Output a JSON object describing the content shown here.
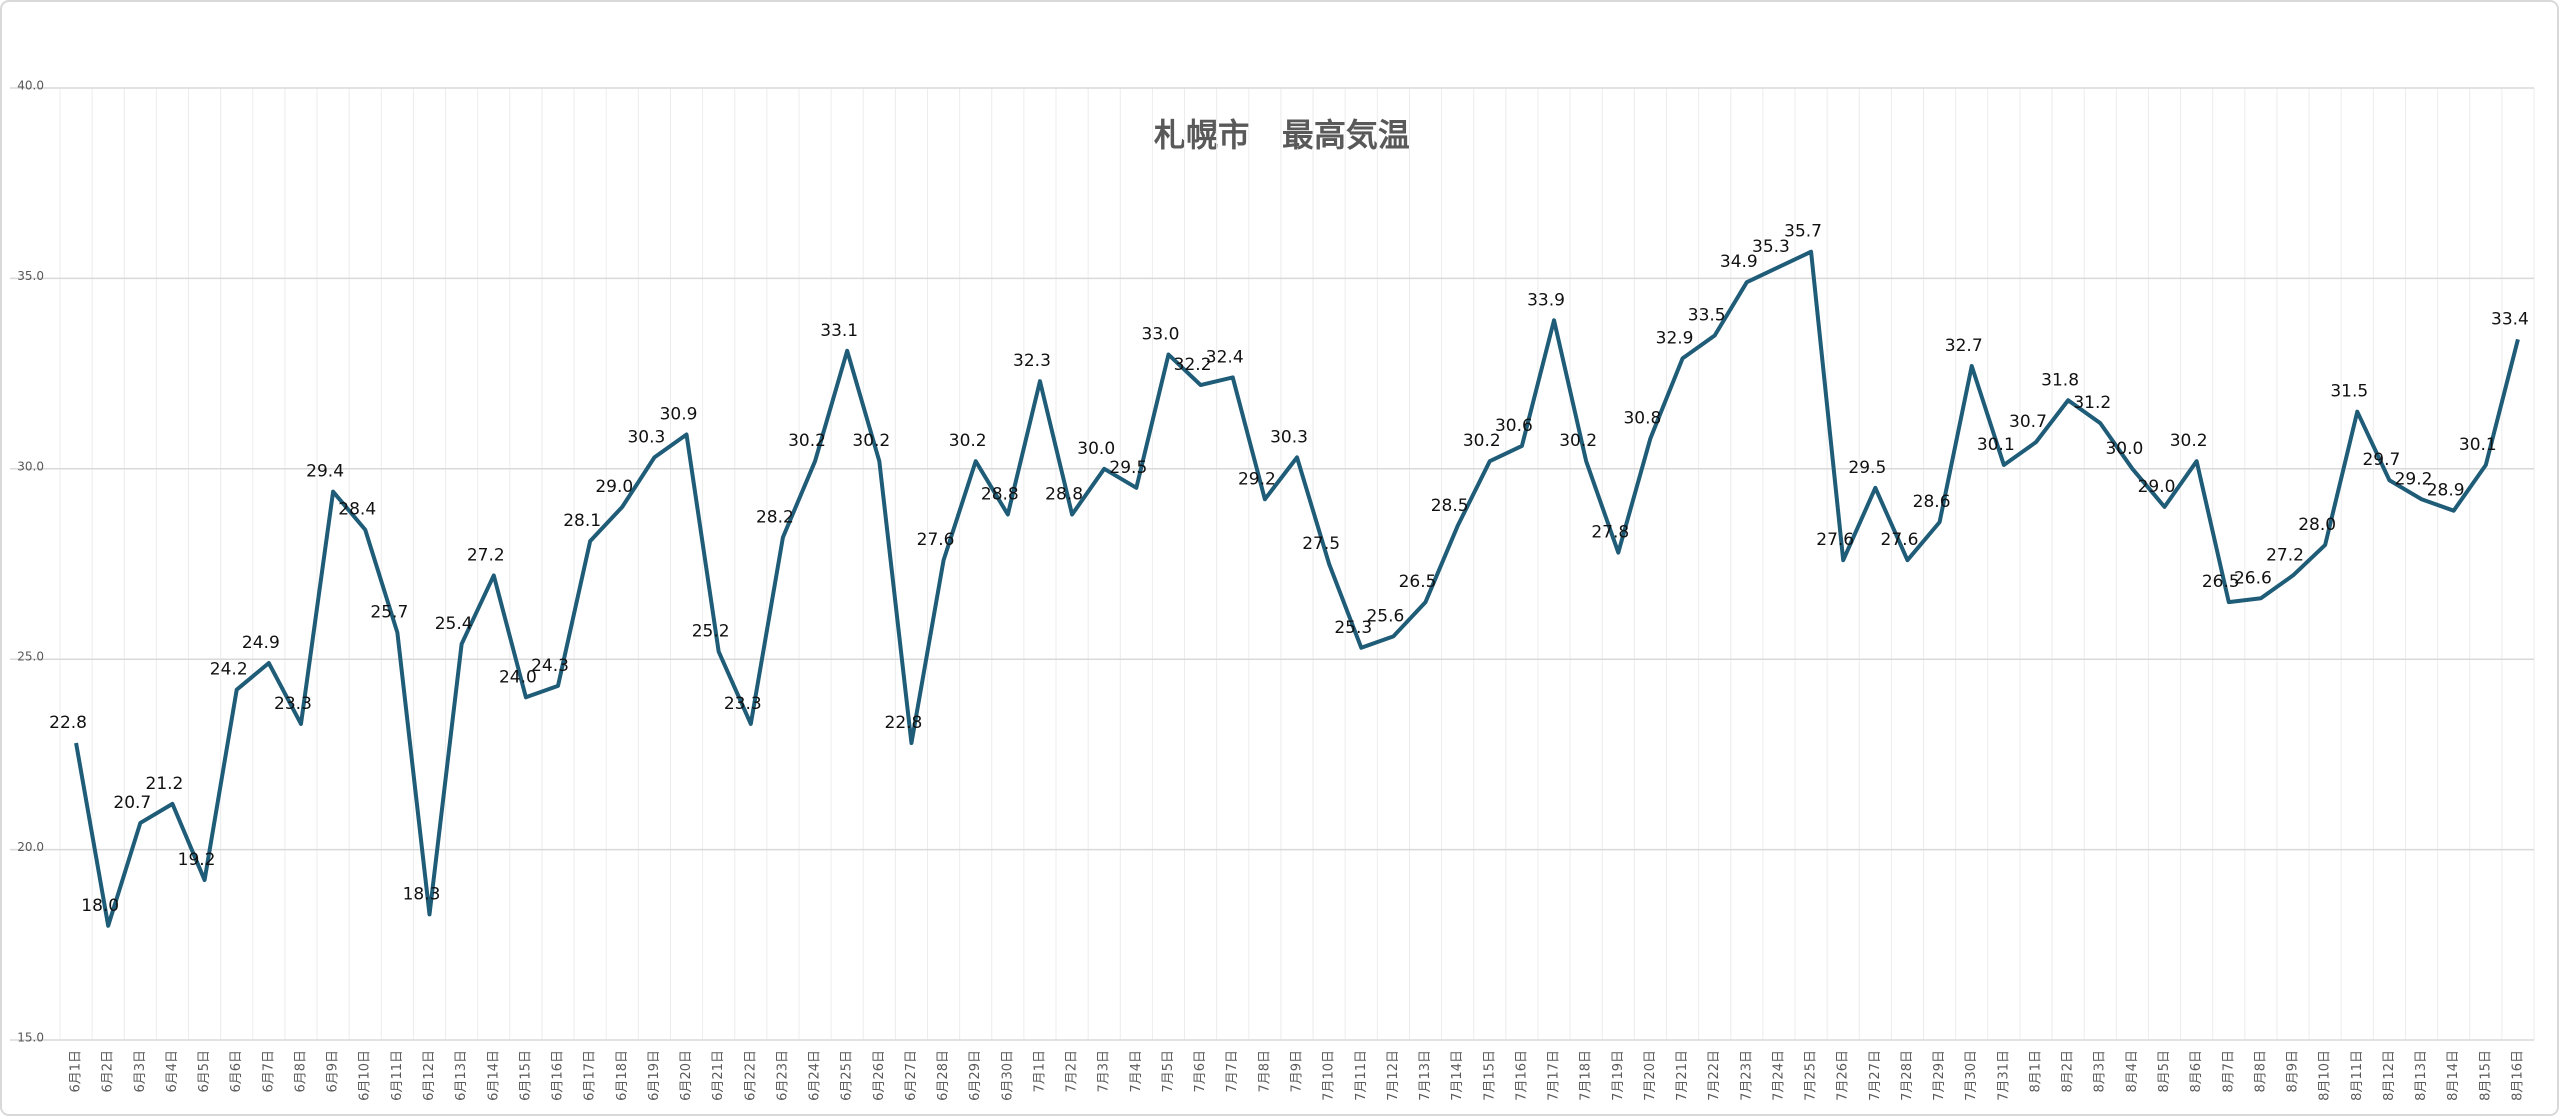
{
  "chart_data": {
    "type": "line",
    "title": "札幌市　最高気温",
    "categories": [
      "6月1日",
      "6月2日",
      "6月3日",
      "6月4日",
      "6月5日",
      "6月6日",
      "6月7日",
      "6月8日",
      "6月9日",
      "6月10日",
      "6月11日",
      "6月12日",
      "6月13日",
      "6月14日",
      "6月15日",
      "6月16日",
      "6月17日",
      "6月18日",
      "6月19日",
      "6月20日",
      "6月21日",
      "6月22日",
      "6月23日",
      "6月24日",
      "6月25日",
      "6月26日",
      "6月27日",
      "6月28日",
      "6月29日",
      "6月30日",
      "7月1日",
      "7月2日",
      "7月3日",
      "7月4日",
      "7月5日",
      "7月6日",
      "7月7日",
      "7月8日",
      "7月9日",
      "7月10日",
      "7月11日",
      "7月12日",
      "7月13日",
      "7月14日",
      "7月15日",
      "7月16日",
      "7月17日",
      "7月18日",
      "7月19日",
      "7月20日",
      "7月21日",
      "7月22日",
      "7月23日",
      "7月24日",
      "7月25日",
      "7月26日",
      "7月27日",
      "7月28日",
      "7月29日",
      "7月30日",
      "7月31日",
      "8月1日",
      "8月2日",
      "8月3日",
      "8月4日",
      "8月5日",
      "8月6日",
      "8月7日",
      "8月8日",
      "8月9日",
      "8月10日",
      "8月11日",
      "8月12日",
      "8月13日",
      "8月14日",
      "8月15日",
      "8月16日"
    ],
    "values": [
      22.8,
      18.0,
      20.7,
      21.2,
      19.2,
      24.2,
      24.9,
      23.3,
      29.4,
      28.4,
      25.7,
      18.3,
      25.4,
      27.2,
      24.0,
      24.3,
      28.1,
      29.0,
      30.3,
      30.9,
      25.2,
      23.3,
      28.2,
      30.2,
      33.1,
      30.2,
      22.8,
      27.6,
      30.2,
      28.8,
      32.3,
      28.8,
      30.0,
      29.5,
      33.0,
      32.2,
      32.4,
      29.2,
      30.3,
      27.5,
      25.3,
      25.6,
      26.5,
      28.5,
      30.2,
      30.6,
      33.9,
      30.2,
      27.8,
      30.8,
      32.9,
      33.5,
      34.9,
      35.3,
      35.7,
      27.6,
      29.5,
      27.6,
      28.6,
      32.7,
      30.1,
      30.7,
      31.8,
      31.2,
      30.0,
      29.0,
      30.2,
      26.5,
      26.6,
      27.2,
      28.0,
      31.5,
      29.7,
      29.2,
      28.9,
      30.1,
      33.4
    ],
    "value_labels": [
      "22.8",
      "18.0",
      "20.7",
      "21.2",
      "19.2",
      "24.2",
      "24.9",
      "23.3",
      "29.4",
      "28.4",
      "25.7",
      "18.3",
      "25.4",
      "27.2",
      "24.0",
      "24.3",
      "28.1",
      "29.0",
      "30.3",
      "30.9",
      "25.2",
      "23.3",
      "28.2",
      "30.2",
      "33.1",
      "30.2",
      "22.8",
      "27.6",
      "30.2",
      "28.8",
      "32.3",
      "28.8",
      "30.0",
      "29.5",
      "33.0",
      "32.2",
      "32.4",
      "29.2",
      "30.3",
      "27.5",
      "25.3",
      "25.6",
      "26.5",
      "28.5",
      "30.2",
      "30.6",
      "33.9",
      "30.2",
      "27.8",
      "30.8",
      "32.9",
      "33.5",
      "34.9",
      "35.3",
      "35.7",
      "27.6",
      "29.5",
      "27.6",
      "28.6",
      "32.7",
      "30.1",
      "30.7",
      "31.8",
      "31.2",
      "30.0",
      "29.0",
      "30.2",
      "26.5",
      "26.6",
      "27.2",
      "28.0",
      "31.5",
      "29.7",
      "29.2",
      "28.9",
      "30.1",
      "33.4"
    ],
    "color": "#1f5c78",
    "ylim": [
      15,
      40
    ],
    "yticks": [
      {
        "value": 15,
        "label": "15.0"
      },
      {
        "value": 20,
        "label": "20.0"
      },
      {
        "value": 25,
        "label": "25.0"
      },
      {
        "value": 30,
        "label": "30.0"
      },
      {
        "value": 35,
        "label": "35.0"
      },
      {
        "value": 40,
        "label": "40.0"
      }
    ],
    "grid": true
  }
}
